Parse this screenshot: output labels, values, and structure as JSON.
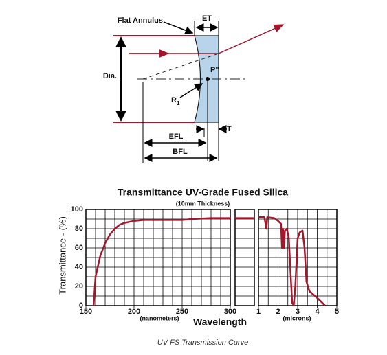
{
  "diagram": {
    "labels": [
      "Flat Annulus",
      "ET",
      "Dia.",
      "P\"",
      "R",
      "1",
      "CT",
      "EFL",
      "BFL"
    ]
  },
  "chart_data": [
    {
      "type": "line",
      "title": "Transmittance UV-Grade Fused Silica",
      "subtitle": "(10mm Thickness)",
      "y_label": "Transmittance - (%)",
      "x_label": "Wavelength",
      "x_unit_label": "(nanometers)",
      "color": "#a3162c",
      "grid": true,
      "xlim": [
        150,
        300
      ],
      "xticks": [
        150,
        200,
        250,
        300
      ],
      "x_minor_ticks": [
        160,
        170,
        180,
        190,
        210,
        220,
        230,
        240,
        260,
        270,
        280,
        290
      ],
      "ylim": [
        0,
        100
      ],
      "yticks": [
        0,
        20,
        40,
        60,
        80,
        100
      ],
      "y_minor_ticks": [
        10,
        30,
        50,
        70,
        90
      ],
      "x": [
        158,
        160,
        165,
        170,
        175,
        180,
        185,
        190,
        195,
        200,
        210,
        220,
        230,
        250,
        260,
        280,
        300
      ],
      "values": [
        0,
        30,
        52,
        65,
        74,
        80,
        84,
        86,
        87,
        88,
        89,
        89,
        89,
        89,
        90,
        91,
        91
      ]
    },
    {
      "type": "line",
      "color": "#a3162c",
      "grid": true,
      "ylim": [
        0,
        100
      ],
      "yticks": [
        0,
        20,
        40,
        60,
        80,
        100
      ],
      "y_minor_ticks": [
        10,
        30,
        50,
        70,
        90
      ],
      "values": [
        91,
        91
      ]
    },
    {
      "type": "line",
      "x_unit_label": "(microns)",
      "color": "#a3162c",
      "grid": true,
      "xlim": [
        1,
        5
      ],
      "xticks": [
        1,
        2,
        3,
        4,
        5
      ],
      "x_minor_ticks": [
        1.5,
        2.5,
        3.5,
        4.5
      ],
      "ylim": [
        0,
        100
      ],
      "yticks": [
        0,
        20,
        40,
        60,
        80,
        100
      ],
      "y_minor_ticks": [
        10,
        30,
        50,
        70,
        90
      ],
      "x": [
        1,
        1.3,
        1.4,
        1.45,
        1.8,
        2.0,
        2.15,
        2.2,
        2.25,
        2.3,
        2.35,
        2.45,
        2.55,
        2.65,
        2.72,
        2.8,
        2.88,
        2.95,
        3.0,
        3.1,
        3.25,
        3.35,
        3.45,
        3.6,
        4.0,
        4.3,
        4.4
      ],
      "values": [
        92,
        92,
        80,
        92,
        91,
        88,
        85,
        60,
        80,
        60,
        78,
        80,
        70,
        30,
        3,
        0,
        20,
        50,
        70,
        76,
        78,
        60,
        25,
        15,
        8,
        2,
        0
      ]
    }
  ],
  "caption": "UV FS Transmission Curve"
}
